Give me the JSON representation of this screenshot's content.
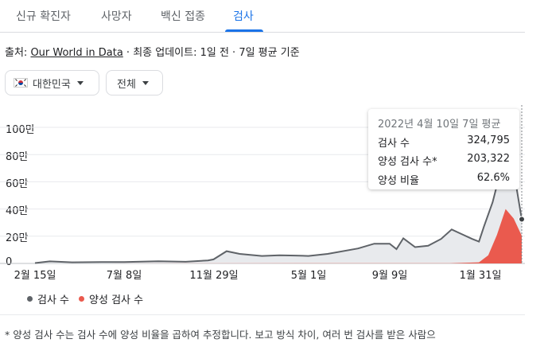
{
  "tabs": [
    {
      "label": "신규 확진자",
      "active": false
    },
    {
      "label": "사망자",
      "active": false
    },
    {
      "label": "백신 접종",
      "active": false
    },
    {
      "label": "검사",
      "active": true
    }
  ],
  "source": {
    "prefix": "출처: ",
    "link": "Our World in Data",
    "suffix": " · 최종 업데이트: 1일 전 · 7일 평균 기준"
  },
  "filters": {
    "country": {
      "label": "대한민국",
      "icon": "korea-flag-icon"
    },
    "range": {
      "label": "전체"
    }
  },
  "tooltip": {
    "title": "2022년 4월 10일 7일 평균",
    "rows": [
      {
        "label": "검사 수",
        "value": "324,795"
      },
      {
        "label": "양성 검사 수*",
        "value": "203,322"
      },
      {
        "label": "양성 비율",
        "value": "62.6%"
      }
    ]
  },
  "legend": [
    {
      "label": "검사 수",
      "color": "#5f6368"
    },
    {
      "label": "양성 검사 수",
      "color": "#ea5a4e"
    }
  ],
  "footnote": "* 양성 검사 수는 검사 수에 양성 비율을 곱하여 추정합니다. 보고 방식 차이, 여러 번 검사를 받은 사람으",
  "chart_data": {
    "type": "area",
    "ylim": [
      0,
      1000000
    ],
    "ytick_values": [
      0,
      200000,
      400000,
      600000,
      800000,
      1000000
    ],
    "yticks": [
      "0",
      "20만",
      "40만",
      "60만",
      "80만",
      "100만"
    ],
    "xticks": [
      "2월 15일",
      "7월 8일",
      "11월 29일",
      "5월 1일",
      "9월 9일",
      "1월 31일"
    ],
    "xtick_dates": [
      "2020-02-15",
      "2020-07-08",
      "2020-11-29",
      "2021-05-01",
      "2021-09-09",
      "2022-01-31"
    ],
    "x_range": [
      "2020-02-15",
      "2022-04-10"
    ],
    "series": [
      {
        "name": "검사 수",
        "color": "#5f6368",
        "fill": "#e8eaed",
        "points": [
          [
            "2020-02-15",
            3000
          ],
          [
            "2020-03-10",
            15000
          ],
          [
            "2020-04-15",
            8000
          ],
          [
            "2020-06-01",
            10000
          ],
          [
            "2020-07-08",
            10000
          ],
          [
            "2020-09-01",
            16000
          ],
          [
            "2020-10-15",
            12000
          ],
          [
            "2020-11-20",
            22000
          ],
          [
            "2020-11-29",
            30000
          ],
          [
            "2020-12-20",
            90000
          ],
          [
            "2021-01-10",
            70000
          ],
          [
            "2021-02-15",
            55000
          ],
          [
            "2021-03-15",
            60000
          ],
          [
            "2021-04-10",
            58000
          ],
          [
            "2021-05-01",
            55000
          ],
          [
            "2021-06-01",
            70000
          ],
          [
            "2021-07-20",
            110000
          ],
          [
            "2021-08-15",
            145000
          ],
          [
            "2021-09-09",
            145000
          ],
          [
            "2021-09-20",
            105000
          ],
          [
            "2021-10-01",
            185000
          ],
          [
            "2021-10-20",
            120000
          ],
          [
            "2021-11-10",
            130000
          ],
          [
            "2021-12-01",
            180000
          ],
          [
            "2021-12-18",
            250000
          ],
          [
            "2022-01-01",
            220000
          ],
          [
            "2022-01-20",
            180000
          ],
          [
            "2022-01-31",
            160000
          ],
          [
            "2022-02-08",
            270000
          ],
          [
            "2022-02-22",
            450000
          ],
          [
            "2022-03-08",
            700000
          ],
          [
            "2022-03-20",
            950000
          ],
          [
            "2022-03-28",
            680000
          ],
          [
            "2022-04-10",
            324795
          ]
        ]
      },
      {
        "name": "양성 검사 수",
        "color": "#ea5a4e",
        "fill": "#ea5a4e",
        "points": [
          [
            "2020-02-15",
            0
          ],
          [
            "2021-12-15",
            2000
          ],
          [
            "2022-01-31",
            8000
          ],
          [
            "2022-02-15",
            60000
          ],
          [
            "2022-03-01",
            210000
          ],
          [
            "2022-03-15",
            400000
          ],
          [
            "2022-03-28",
            330000
          ],
          [
            "2022-04-10",
            203322
          ]
        ]
      }
    ]
  }
}
